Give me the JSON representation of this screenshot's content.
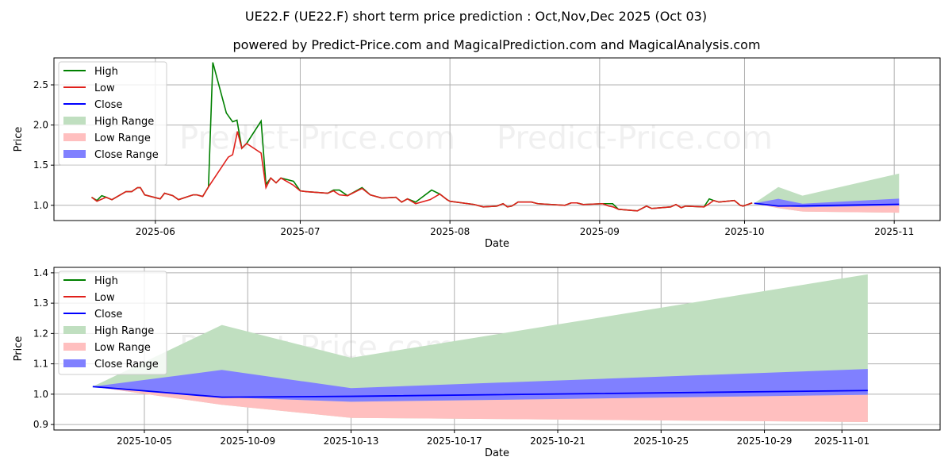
{
  "title": "UE22.F (UE22.F) short term price prediction : Oct,Nov,Dec 2025 (Oct 03)",
  "subtitle": "powered by Predict-Price.com and MagicalPrediction.com and MagicalAnalysis.com",
  "watermark": "Predict-Price.com",
  "colors": {
    "high": "#008000",
    "low": "#e0201b",
    "close": "#0000ff",
    "high_range": "#c0dfc0",
    "low_range": "#ffbfbf",
    "close_range": "#8080ff"
  },
  "legend": [
    "High",
    "Low",
    "Close",
    "High Range",
    "Low Range",
    "Close Range"
  ],
  "chart_data": [
    {
      "type": "line",
      "panel": "history",
      "day_zero": "2025-06-01",
      "xlabel": "Date",
      "ylabel": "Price",
      "xlim_days": [
        -21,
        162.5
      ],
      "ylim": [
        0.81,
        2.836
      ],
      "grid": true,
      "legend_position": "top-left",
      "xticks": [
        {
          "day": 0,
          "label": "2025-06"
        },
        {
          "day": 30,
          "label": "2025-07"
        },
        {
          "day": 61,
          "label": "2025-08"
        },
        {
          "day": 92,
          "label": "2025-09"
        },
        {
          "day": 122,
          "label": "2025-10"
        },
        {
          "day": 153,
          "label": "2025-11"
        }
      ],
      "yticks": [
        1.0,
        1.5,
        2.0,
        2.5
      ],
      "ytick_labels": [
        "1.0",
        "1.5",
        "2.0",
        "2.5"
      ],
      "low": [
        [
          -13.2,
          1.1
        ],
        [
          -12.1,
          1.05
        ],
        [
          -10.2,
          1.1
        ],
        [
          -9.0,
          1.07
        ],
        [
          -6.1,
          1.17
        ],
        [
          -4.9,
          1.17
        ],
        [
          -3.7,
          1.22
        ],
        [
          -3.1,
          1.22
        ],
        [
          -2.2,
          1.13
        ],
        [
          1.0,
          1.08
        ],
        [
          1.9,
          1.15
        ],
        [
          3.6,
          1.12
        ],
        [
          4.8,
          1.07
        ],
        [
          7.8,
          1.13
        ],
        [
          8.6,
          1.13
        ],
        [
          9.8,
          1.11
        ],
        [
          11.0,
          1.23
        ],
        [
          15.1,
          1.6
        ],
        [
          16.0,
          1.63
        ],
        [
          17.0,
          1.92
        ],
        [
          17.9,
          1.71
        ],
        [
          18.9,
          1.77
        ],
        [
          21.9,
          1.65
        ],
        [
          22.9,
          1.22
        ],
        [
          23.9,
          1.34
        ],
        [
          25.0,
          1.28
        ],
        [
          26.0,
          1.34
        ],
        [
          28.6,
          1.25
        ],
        [
          30.0,
          1.18
        ],
        [
          31.3,
          1.17
        ],
        [
          35.7,
          1.15
        ],
        [
          36.9,
          1.18
        ],
        [
          38.1,
          1.13
        ],
        [
          39.8,
          1.12
        ],
        [
          42.8,
          1.21
        ],
        [
          44.5,
          1.13
        ],
        [
          46.9,
          1.09
        ],
        [
          49.8,
          1.1
        ],
        [
          51.0,
          1.04
        ],
        [
          52.2,
          1.08
        ],
        [
          53.9,
          1.02
        ],
        [
          56.9,
          1.07
        ],
        [
          58.9,
          1.14
        ],
        [
          60.4,
          1.07
        ],
        [
          61,
          1.05
        ],
        [
          66,
          1.01
        ],
        [
          67.9,
          0.98
        ],
        [
          70.7,
          0.99
        ],
        [
          72,
          1.02
        ],
        [
          72.9,
          0.98
        ],
        [
          73.8,
          0.99
        ],
        [
          75.1,
          1.04
        ],
        [
          77.9,
          1.04
        ],
        [
          79.2,
          1.02
        ],
        [
          84.8,
          1.0
        ],
        [
          86.1,
          1.03
        ],
        [
          87.3,
          1.03
        ],
        [
          88.6,
          1.01
        ],
        [
          92.6,
          1.02
        ],
        [
          93.9,
          0.99
        ],
        [
          94.8,
          0.98
        ],
        [
          95.9,
          0.95
        ],
        [
          99.8,
          0.93
        ],
        [
          101.7,
          0.99
        ],
        [
          102.8,
          0.96
        ],
        [
          106.7,
          0.98
        ],
        [
          107.8,
          1.01
        ],
        [
          108.9,
          0.97
        ],
        [
          109.8,
          0.99
        ],
        [
          113.6,
          0.98
        ],
        [
          114.7,
          1.02
        ],
        [
          115.6,
          1.06
        ],
        [
          116.7,
          1.04
        ],
        [
          119.9,
          1.06
        ],
        [
          121.1,
          1.0
        ],
        [
          121.7,
          0.99
        ],
        [
          123.6,
          1.03
        ]
      ],
      "high": [
        [
          -13.2,
          1.1
        ],
        [
          -12.1,
          1.06
        ],
        [
          -11.1,
          1.12
        ],
        [
          -10.2,
          1.1
        ],
        [
          -9.0,
          1.07
        ],
        [
          -6.1,
          1.17
        ],
        [
          -4.9,
          1.17
        ],
        [
          -3.7,
          1.22
        ],
        [
          -3.1,
          1.22
        ],
        [
          -2.2,
          1.13
        ],
        [
          1.0,
          1.08
        ],
        [
          1.9,
          1.15
        ],
        [
          3.6,
          1.12
        ],
        [
          4.8,
          1.07
        ],
        [
          7.8,
          1.13
        ],
        [
          8.6,
          1.13
        ],
        [
          9.8,
          1.11
        ],
        [
          11.0,
          1.23
        ],
        [
          11.9,
          2.78
        ],
        [
          14.7,
          2.15
        ],
        [
          16.0,
          2.04
        ],
        [
          16.9,
          2.06
        ],
        [
          17.9,
          1.71
        ],
        [
          18.9,
          1.77
        ],
        [
          21.9,
          2.05
        ],
        [
          22.9,
          1.26
        ],
        [
          23.9,
          1.34
        ],
        [
          25.0,
          1.28
        ],
        [
          26.0,
          1.34
        ],
        [
          28.6,
          1.3
        ],
        [
          30.0,
          1.18
        ],
        [
          31.3,
          1.17
        ],
        [
          35.7,
          1.15
        ],
        [
          36.9,
          1.19
        ],
        [
          38.1,
          1.19
        ],
        [
          39.8,
          1.12
        ],
        [
          42.8,
          1.22
        ],
        [
          44.5,
          1.13
        ],
        [
          46.9,
          1.09
        ],
        [
          49.8,
          1.1
        ],
        [
          51.0,
          1.04
        ],
        [
          52.2,
          1.08
        ],
        [
          53.9,
          1.04
        ],
        [
          57.2,
          1.19
        ],
        [
          58.9,
          1.14
        ],
        [
          60.4,
          1.07
        ],
        [
          61,
          1.05
        ],
        [
          66,
          1.01
        ],
        [
          67.9,
          0.98
        ],
        [
          70.7,
          0.99
        ],
        [
          72,
          1.02
        ],
        [
          72.9,
          0.98
        ],
        [
          73.8,
          0.99
        ],
        [
          75.1,
          1.04
        ],
        [
          77.9,
          1.04
        ],
        [
          79.2,
          1.02
        ],
        [
          84.8,
          1.0
        ],
        [
          86.1,
          1.03
        ],
        [
          87.3,
          1.03
        ],
        [
          88.6,
          1.01
        ],
        [
          92.6,
          1.02
        ],
        [
          94.7,
          1.02
        ],
        [
          95.9,
          0.95
        ],
        [
          99.8,
          0.93
        ],
        [
          101.7,
          0.99
        ],
        [
          102.8,
          0.96
        ],
        [
          106.7,
          0.98
        ],
        [
          107.8,
          1.01
        ],
        [
          108.9,
          0.97
        ],
        [
          109.8,
          0.99
        ],
        [
          113.6,
          0.98
        ],
        [
          114.7,
          1.08
        ],
        [
          115.6,
          1.06
        ],
        [
          116.7,
          1.04
        ],
        [
          119.9,
          1.06
        ],
        [
          121.1,
          1.0
        ],
        [
          121.7,
          0.99
        ],
        [
          123.6,
          1.03
        ]
      ]
    },
    {
      "type": "area",
      "panel": "forecast",
      "day_zero": "2025-06-01",
      "xlabel": "Date",
      "ylabel": "Price",
      "xlim_days": [
        122.5,
        156.8
      ],
      "ylim": [
        0.882,
        1.418
      ],
      "grid": true,
      "legend_position": "top-left",
      "xticks": [
        {
          "day": 126,
          "label": "2025-10-05"
        },
        {
          "day": 130,
          "label": "2025-10-09"
        },
        {
          "day": 134,
          "label": "2025-10-13"
        },
        {
          "day": 138,
          "label": "2025-10-17"
        },
        {
          "day": 142,
          "label": "2025-10-21"
        },
        {
          "day": 146,
          "label": "2025-10-25"
        },
        {
          "day": 150,
          "label": "2025-10-29"
        },
        {
          "day": 153,
          "label": "2025-11-01"
        }
      ],
      "yticks": [
        0.9,
        1.0,
        1.1,
        1.2,
        1.3,
        1.4
      ],
      "ytick_labels": [
        "0.9",
        "1.0",
        "1.1",
        "1.2",
        "1.3",
        "1.4"
      ],
      "days": [
        124,
        129,
        134,
        154
      ],
      "dates": [
        "2025-10-03",
        "2025-10-08",
        "2025-10-13",
        "2025-11-02"
      ],
      "high_range_top": [
        1.025,
        1.228,
        1.12,
        1.395
      ],
      "low_range_bottom": [
        1.025,
        0.965,
        0.922,
        0.908
      ],
      "close_range_top": [
        1.025,
        1.08,
        1.02,
        1.083
      ],
      "close_range_bottom": [
        1.025,
        0.99,
        0.975,
        0.998
      ],
      "close": [
        1.025,
        0.99,
        0.993,
        1.012
      ]
    }
  ]
}
